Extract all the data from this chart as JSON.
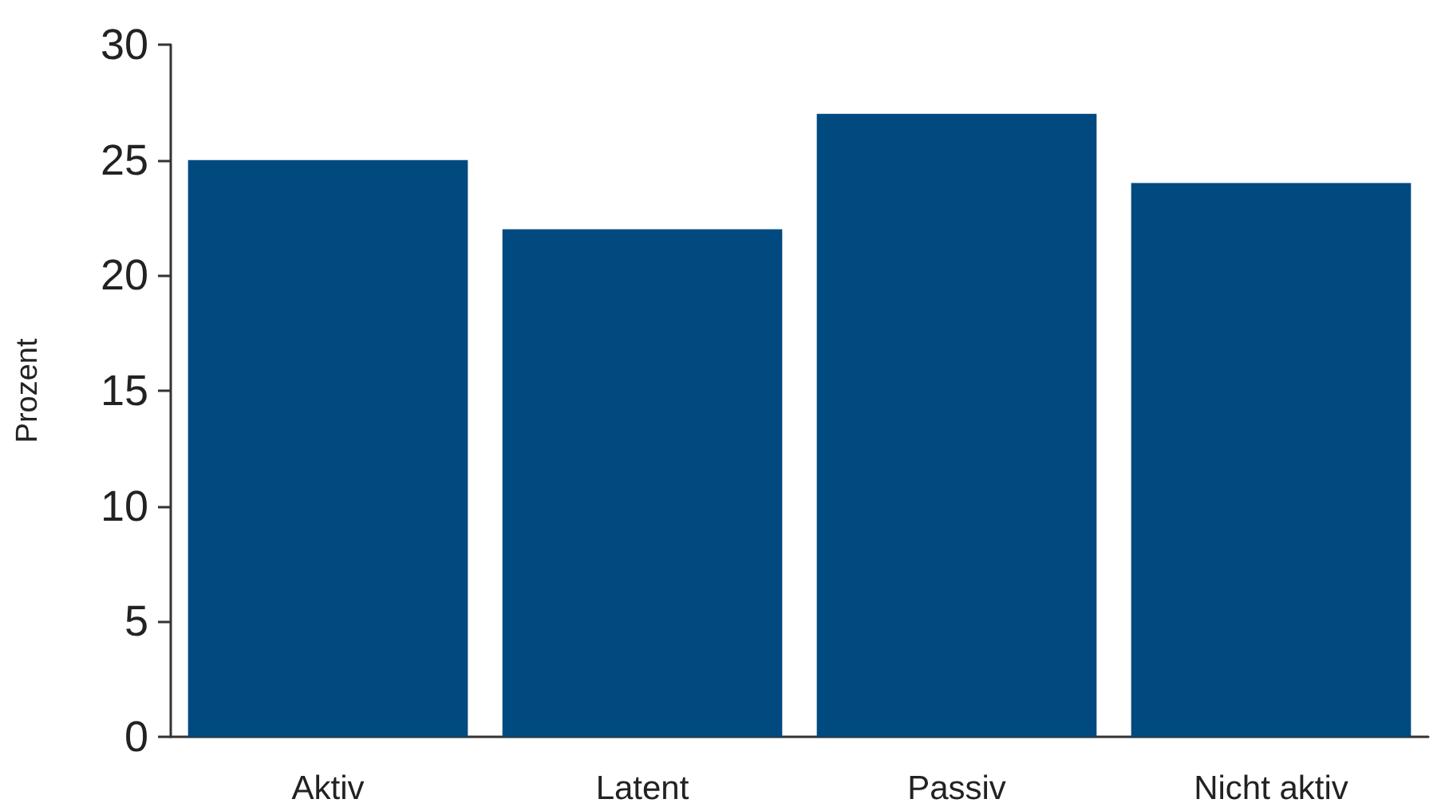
{
  "chart_data": {
    "type": "bar",
    "ylabel": "Prozent",
    "categories": [
      "Aktiv",
      "Latent",
      "Passiv",
      "Nicht aktiv"
    ],
    "values": [
      25,
      22,
      27,
      24
    ],
    "color": "#004a80",
    "ylim": [
      0,
      30
    ],
    "yticks": [
      0,
      5,
      10,
      15,
      20,
      25,
      30
    ],
    "grid": false
  }
}
